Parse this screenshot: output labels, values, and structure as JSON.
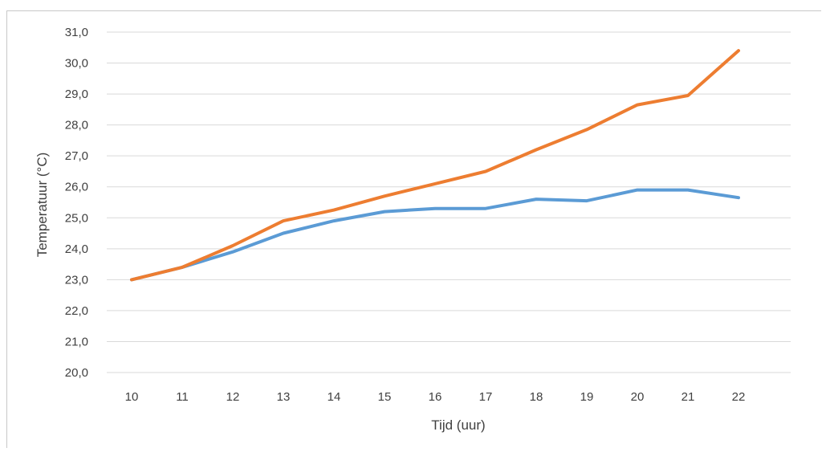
{
  "chart_data": {
    "type": "line",
    "title": "",
    "xlabel": "Tijd (uur)",
    "ylabel": "Temperatuur (°C)",
    "categories": [
      "10",
      "11",
      "12",
      "13",
      "14",
      "15",
      "16",
      "17",
      "18",
      "19",
      "20",
      "21",
      "22"
    ],
    "y_tick_labels": [
      "20,0",
      "21,0",
      "22,0",
      "23,0",
      "24,0",
      "25,0",
      "26,0",
      "27,0",
      "28,0",
      "29,0",
      "30,0",
      "31,0"
    ],
    "ylim": [
      20,
      31
    ],
    "grid": true,
    "legend": "none",
    "series": [
      {
        "color": "#5b9bd5",
        "values": [
          23.0,
          23.4,
          23.9,
          24.5,
          24.9,
          25.2,
          25.3,
          25.3,
          25.6,
          25.55,
          25.9,
          25.9,
          25.65
        ]
      },
      {
        "color": "#ed7d31",
        "values": [
          23.0,
          23.4,
          24.1,
          24.9,
          25.25,
          25.7,
          26.1,
          26.5,
          27.2,
          27.85,
          28.65,
          28.95,
          30.4
        ]
      }
    ]
  }
}
